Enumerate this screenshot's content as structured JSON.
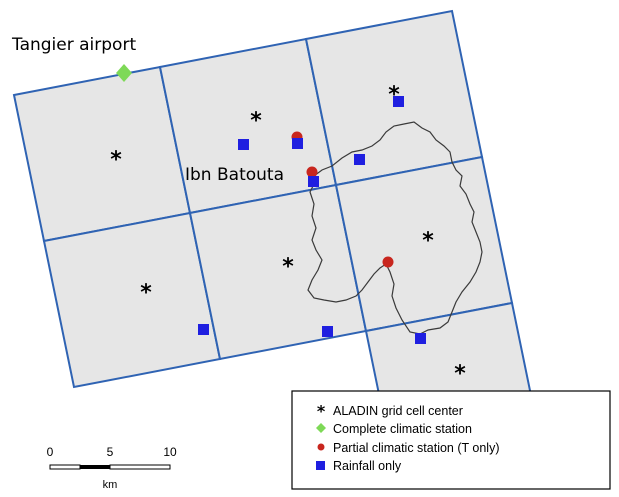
{
  "labels": {
    "tangier_airport": "Tangier airport",
    "ibn_batouta": "Ibn Batouta"
  },
  "legend": {
    "items": [
      {
        "symbol": "asterisk",
        "label": "ALADIN grid cell center"
      },
      {
        "symbol": "green-diamond",
        "label": "Complete climatic station"
      },
      {
        "symbol": "red-dot",
        "label": "Partial climatic station (T only)"
      },
      {
        "symbol": "blue-square",
        "label": "Rainfall only"
      }
    ]
  },
  "scale_bar": {
    "ticks": [
      "0",
      "5",
      "10"
    ],
    "unit": "km"
  },
  "colors": {
    "grid_line": "#2f63b3",
    "cell_fill": "#e6e6e6",
    "watershed": "#3a3a3a",
    "complete_station": "#7ed957",
    "partial_station": "#c8261e",
    "rainfall_station": "#1f1fe0"
  }
}
